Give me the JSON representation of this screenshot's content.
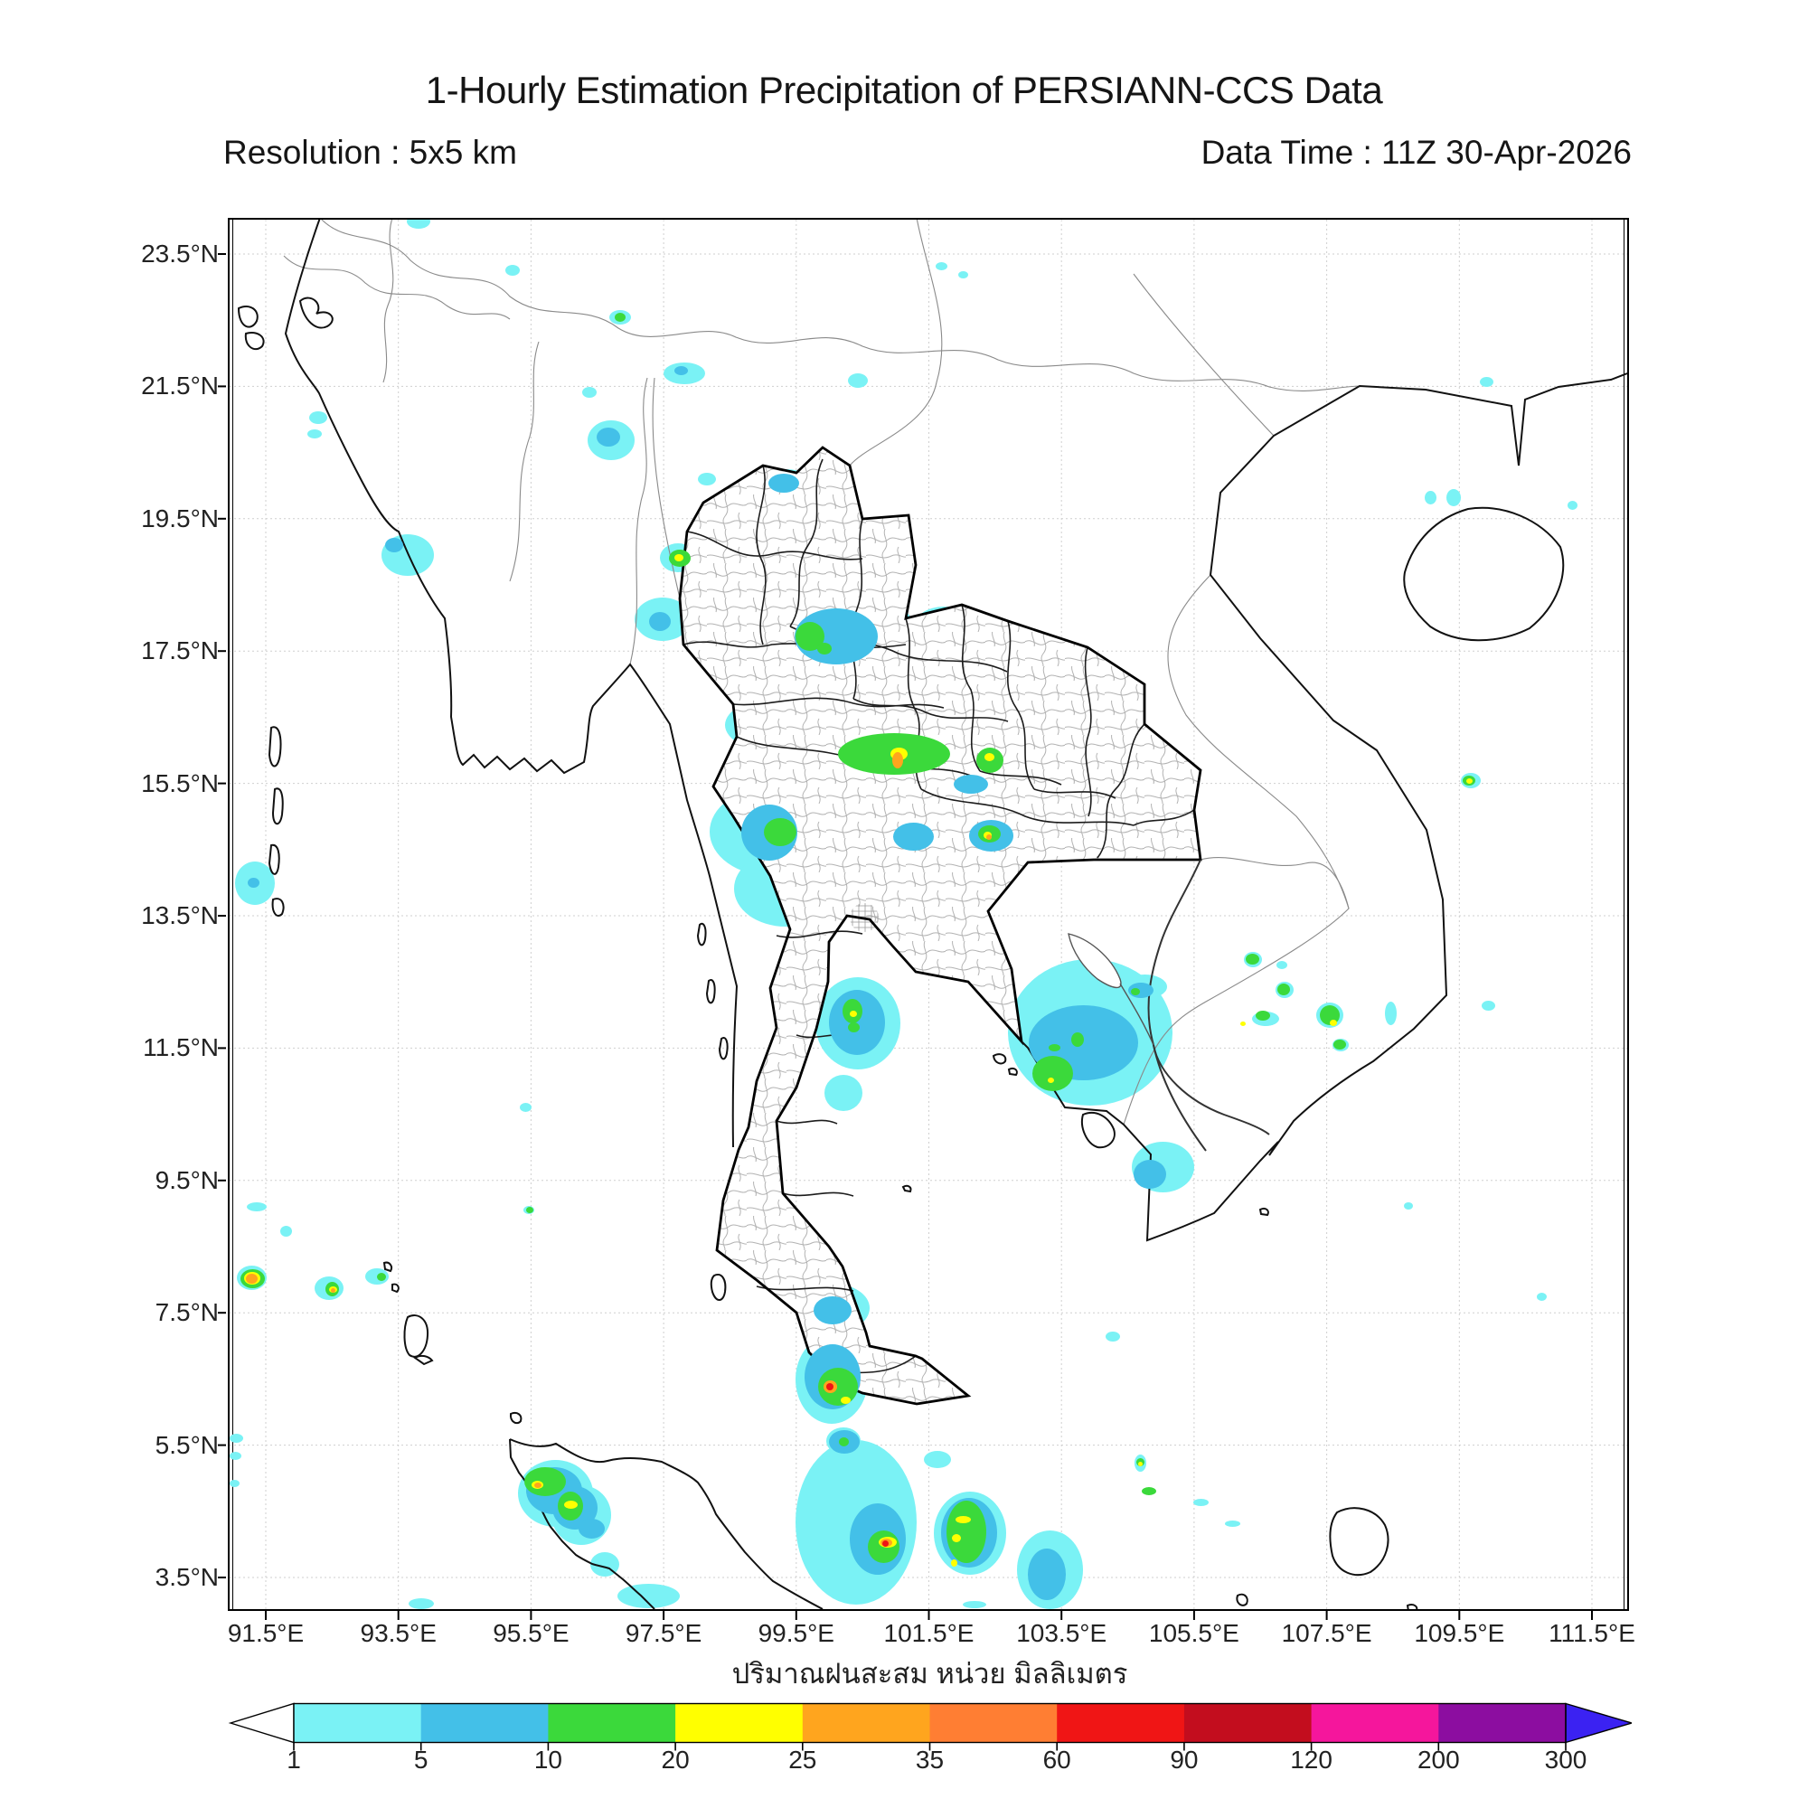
{
  "header": {
    "title": "1-Hourly Estimation Precipitation of PERSIANN-CCS Data",
    "resolution_label": "Resolution : 5x5 km",
    "data_time_label": "Data Time : 11Z 30-Apr-2026"
  },
  "map": {
    "caption_thai": "ปริมาณฝนสะสม หน่วย มิลลิเมตร",
    "lat_tick_labels": [
      "23.5°N",
      "21.5°N",
      "19.5°N",
      "17.5°N",
      "15.5°N",
      "13.5°N",
      "11.5°N",
      "9.5°N",
      "7.5°N",
      "5.5°N",
      "3.5°N"
    ],
    "lon_tick_labels": [
      "91.5°E",
      "93.5°E",
      "95.5°E",
      "97.5°E",
      "99.5°E",
      "101.5°E",
      "103.5°E",
      "105.5°E",
      "107.5°E",
      "109.5°E",
      "111.5°E"
    ]
  },
  "colorbar": {
    "tick_values": [
      "1",
      "5",
      "10",
      "20",
      "25",
      "35",
      "60",
      "90",
      "120",
      "200",
      "300"
    ],
    "segment_colors": [
      "#7AF2F5",
      "#43C0E8",
      "#3BD93B",
      "#FFFF00",
      "#FFA51E",
      "#FF7E33",
      "#F01515",
      "#C30D1E",
      "#F5169C",
      "#8C0DA0"
    ],
    "left_arrow_color": "#FFFFFF",
    "right_arrow_color": "#3B22F2"
  },
  "precipitation": {
    "units": "mm",
    "levels": {
      "c": {
        "color": "#7AF2F5",
        "range_mm": "1-5"
      },
      "b": {
        "color": "#43C0E8",
        "range_mm": "5-10"
      },
      "g": {
        "color": "#3BD93B",
        "range_mm": "10-20"
      },
      "y": {
        "color": "#FFFF00",
        "range_mm": "20-25"
      },
      "o": {
        "color": "#FFA51E",
        "range_mm": "25-35"
      },
      "O": {
        "color": "#FF7E33",
        "range_mm": "35-60"
      },
      "r": {
        "color": "#F01515",
        "range_mm": "60-90"
      }
    },
    "cells": [
      [
        196,
        -6,
        26,
        16,
        "c"
      ],
      [
        305,
        50,
        16,
        12,
        "c"
      ],
      [
        420,
        100,
        24,
        16,
        "c"
      ],
      [
        390,
        185,
        16,
        12,
        "c"
      ],
      [
        396,
        222,
        52,
        44,
        "c"
      ],
      [
        480,
        158,
        46,
        24,
        "c"
      ],
      [
        518,
        280,
        20,
        14,
        "c"
      ],
      [
        684,
        170,
        22,
        16,
        "c"
      ],
      [
        588,
        276,
        56,
        34,
        "c"
      ],
      [
        88,
        212,
        20,
        14,
        "c"
      ],
      [
        86,
        232,
        16,
        10,
        "c"
      ],
      [
        168,
        348,
        58,
        46,
        "c"
      ],
      [
        448,
        418,
        62,
        48,
        "c"
      ],
      [
        476,
        358,
        40,
        32,
        "c"
      ],
      [
        500,
        396,
        32,
        22,
        "c"
      ],
      [
        618,
        414,
        142,
        88,
        "c"
      ],
      [
        758,
        428,
        64,
        42,
        "c"
      ],
      [
        548,
        528,
        124,
        62,
        "c"
      ],
      [
        598,
        556,
        210,
        72,
        "c"
      ],
      [
        742,
        538,
        165,
        92,
        "c"
      ],
      [
        771,
        594,
        96,
        32,
        "c"
      ],
      [
        531,
        628,
        136,
        98,
        "c"
      ],
      [
        558,
        698,
        114,
        84,
        "c"
      ],
      [
        805,
        654,
        82,
        58,
        "c"
      ],
      [
        728,
        654,
        106,
        58,
        "c"
      ],
      [
        648,
        838,
        94,
        102,
        "c"
      ],
      [
        658,
        946,
        42,
        40,
        "c"
      ],
      [
        861,
        818,
        182,
        162,
        "c"
      ],
      [
        988,
        835,
        49,
        27,
        "c"
      ],
      [
        998,
        1020,
        69,
        56,
        "c"
      ],
      [
        1122,
        810,
        20,
        17,
        "c"
      ],
      [
        1158,
        820,
        12,
        9,
        "c"
      ],
      [
        1157,
        843,
        20,
        18,
        "c"
      ],
      [
        1131,
        876,
        30,
        16,
        "c"
      ],
      [
        1202,
        866,
        30,
        28,
        "c"
      ],
      [
        1278,
        865,
        13,
        26,
        "c"
      ],
      [
        1220,
        906,
        18,
        14,
        "c"
      ],
      [
        1299,
        1087,
        10,
        8,
        "c"
      ],
      [
        1362,
        612,
        22,
        17,
        "c"
      ],
      [
        1576,
        52,
        13,
        10,
        "c"
      ],
      [
        1590,
        77,
        11,
        8,
        "c"
      ],
      [
        1383,
        174,
        15,
        11,
        "c"
      ],
      [
        1322,
        300,
        13,
        15,
        "c"
      ],
      [
        1346,
        298,
        16,
        19,
        "c"
      ],
      [
        1480,
        311,
        11,
        10,
        "c"
      ],
      [
        6,
        710,
        44,
        48,
        "c"
      ],
      [
        8,
        1157,
        33,
        27,
        "c"
      ],
      [
        94,
        1169,
        32,
        26,
        "c"
      ],
      [
        150,
        1160,
        26,
        18,
        "c"
      ],
      [
        19,
        1087,
        22,
        10,
        "c"
      ],
      [
        56,
        1113,
        13,
        12,
        "c"
      ],
      [
        0,
        1343,
        15,
        10,
        "c"
      ],
      [
        0,
        1363,
        13,
        9,
        "c"
      ],
      [
        0,
        1394,
        11,
        8,
        "c"
      ],
      [
        198,
        1525,
        28,
        12,
        "c"
      ],
      [
        321,
        977,
        13,
        10,
        "c"
      ],
      [
        325,
        1091,
        12,
        9,
        "c"
      ],
      [
        626,
        1177,
        82,
        54,
        "c"
      ],
      [
        626,
        1234,
        80,
        98,
        "c"
      ],
      [
        660,
        1336,
        38,
        30,
        "c"
      ],
      [
        626,
        1350,
        134,
        182,
        "c"
      ],
      [
        779,
        1407,
        80,
        92,
        "c"
      ],
      [
        768,
        1362,
        30,
        19,
        "c"
      ],
      [
        969,
        1230,
        16,
        11,
        "c"
      ],
      [
        1001,
        1366,
        13,
        19,
        "c"
      ],
      [
        1066,
        1415,
        17,
        8,
        "c"
      ],
      [
        1101,
        1439,
        17,
        7,
        "c"
      ],
      [
        811,
        1528,
        26,
        8,
        "c"
      ],
      [
        871,
        1450,
        73,
        87,
        "c"
      ],
      [
        319,
        1372,
        83,
        74,
        "c"
      ],
      [
        356,
        1400,
        66,
        66,
        "c"
      ],
      [
        399,
        1474,
        32,
        27,
        "c"
      ],
      [
        429,
        1509,
        69,
        27,
        "c"
      ],
      [
        781,
        47,
        13,
        9,
        "c"
      ],
      [
        806,
        57,
        11,
        8,
        "c"
      ],
      [
        1385,
        864,
        15,
        11,
        "c"
      ],
      [
        1446,
        1187,
        11,
        9,
        "c"
      ],
      [
        406,
        230,
        26,
        21,
        "b"
      ],
      [
        492,
        162,
        15,
        10,
        "b"
      ],
      [
        596,
        281,
        34,
        21,
        "b"
      ],
      [
        464,
        434,
        24,
        21,
        "b"
      ],
      [
        625,
        430,
        92,
        62,
        "b"
      ],
      [
        801,
        614,
        38,
        21,
        "b"
      ],
      [
        566,
        647,
        62,
        62,
        "b"
      ],
      [
        818,
        664,
        49,
        35,
        "b"
      ],
      [
        734,
        667,
        45,
        31,
        "b"
      ],
      [
        663,
        852,
        62,
        72,
        "b"
      ],
      [
        884,
        869,
        121,
        83,
        "b"
      ],
      [
        994,
        844,
        28,
        17,
        "b"
      ],
      [
        1000,
        1040,
        36,
        32,
        "b"
      ],
      [
        636,
        1244,
        62,
        72,
        "b"
      ],
      [
        646,
        1191,
        42,
        31,
        "b"
      ],
      [
        663,
        1339,
        34,
        26,
        "b"
      ],
      [
        686,
        1420,
        62,
        79,
        "b"
      ],
      [
        787,
        1414,
        62,
        77,
        "b"
      ],
      [
        883,
        1470,
        42,
        57,
        "b"
      ],
      [
        328,
        1380,
        62,
        52,
        "b"
      ],
      [
        357,
        1401,
        50,
        48,
        "b"
      ],
      [
        386,
        1437,
        29,
        22,
        "b"
      ],
      [
        172,
        352,
        20,
        16,
        "b"
      ],
      [
        20,
        728,
        13,
        11,
        "b"
      ],
      [
        426,
        103,
        12,
        10,
        "g"
      ],
      [
        486,
        365,
        24,
        19,
        "g"
      ],
      [
        626,
        445,
        32,
        32,
        "g"
      ],
      [
        650,
        468,
        16,
        13,
        "g"
      ],
      [
        673,
        568,
        124,
        46,
        "g"
      ],
      [
        826,
        584,
        30,
        28,
        "g"
      ],
      [
        591,
        662,
        36,
        31,
        "g"
      ],
      [
        828,
        670,
        25,
        19,
        "g"
      ],
      [
        678,
        862,
        22,
        27,
        "g"
      ],
      [
        684,
        888,
        13,
        11,
        "g"
      ],
      [
        888,
        925,
        45,
        39,
        "g"
      ],
      [
        931,
        899,
        14,
        16,
        "g"
      ],
      [
        906,
        912,
        13,
        8,
        "g"
      ],
      [
        997,
        850,
        10,
        8,
        "g"
      ],
      [
        1124,
        812,
        15,
        12,
        "g"
      ],
      [
        1159,
        845,
        14,
        13,
        "g"
      ],
      [
        1135,
        875,
        16,
        11,
        "g"
      ],
      [
        1206,
        869,
        22,
        22,
        "g"
      ],
      [
        1221,
        907,
        14,
        11,
        "g"
      ],
      [
        1364,
        615,
        14,
        11,
        "g"
      ],
      [
        12,
        1161,
        27,
        21,
        "g"
      ],
      [
        106,
        1175,
        15,
        16,
        "g"
      ],
      [
        163,
        1165,
        10,
        9,
        "g"
      ],
      [
        651,
        1270,
        44,
        42,
        "g"
      ],
      [
        674,
        1347,
        11,
        10,
        "g"
      ],
      [
        706,
        1450,
        35,
        36,
        "g"
      ],
      [
        793,
        1417,
        44,
        69,
        "g"
      ],
      [
        1003,
        1370,
        9,
        9,
        "g"
      ],
      [
        1009,
        1402,
        16,
        9,
        "g"
      ],
      [
        326,
        1380,
        46,
        32,
        "g"
      ],
      [
        363,
        1407,
        28,
        32,
        "g"
      ],
      [
        328,
        1092,
        8,
        7,
        "g"
      ],
      [
        492,
        370,
        10,
        8,
        "y"
      ],
      [
        731,
        584,
        19,
        14,
        "y"
      ],
      [
        835,
        590,
        11,
        9,
        "y"
      ],
      [
        834,
        677,
        9,
        8,
        "y"
      ],
      [
        686,
        875,
        8,
        7,
        "y"
      ],
      [
        905,
        949,
        7,
        6,
        "y"
      ],
      [
        1118,
        887,
        6,
        5,
        "y"
      ],
      [
        1217,
        885,
        8,
        7,
        "y"
      ],
      [
        1368,
        618,
        7,
        6,
        "y"
      ],
      [
        16,
        1164,
        18,
        14,
        "y"
      ],
      [
        110,
        1180,
        9,
        7,
        "y"
      ],
      [
        676,
        1302,
        11,
        8,
        "y"
      ],
      [
        718,
        1457,
        20,
        12,
        "y"
      ],
      [
        803,
        1434,
        17,
        8,
        "y"
      ],
      [
        799,
        1454,
        10,
        9,
        "y"
      ],
      [
        798,
        1482,
        7,
        8,
        "y"
      ],
      [
        334,
        1395,
        13,
        9,
        "y"
      ],
      [
        370,
        1417,
        15,
        9,
        "y"
      ],
      [
        1005,
        1374,
        5,
        5,
        "y"
      ],
      [
        733,
        589,
        12,
        18,
        "o"
      ],
      [
        837,
        680,
        6,
        6,
        "o"
      ],
      [
        18,
        1166,
        13,
        11,
        "o"
      ],
      [
        112,
        1182,
        5,
        5,
        "o"
      ],
      [
        657,
        1284,
        15,
        14,
        "o"
      ],
      [
        720,
        1459,
        13,
        9,
        "o"
      ],
      [
        337,
        1397,
        8,
        6,
        "o"
      ],
      [
        660,
        1287,
        8,
        8,
        "r"
      ],
      [
        722,
        1461,
        7,
        7,
        "r"
      ]
    ]
  }
}
